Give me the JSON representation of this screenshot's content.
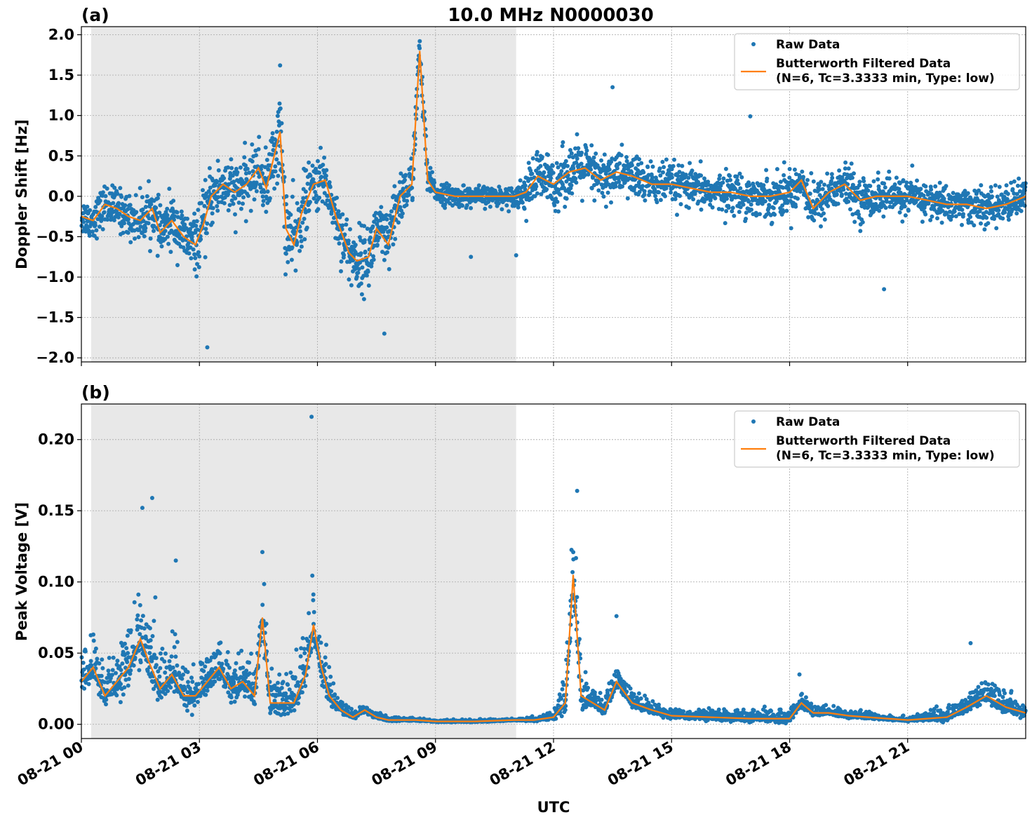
{
  "title": "10.0 MHz N0000030",
  "xlabel": "UTC",
  "x_ticks": [
    "08-21 00",
    "08-21 03",
    "08-21 06",
    "08-21 09",
    "08-21 12",
    "08-21 15",
    "08-21 18",
    "08-21 21"
  ],
  "legend": {
    "raw": "Raw Data",
    "filtered_line1": "Butterworth Filtered Data",
    "filtered_line2": "(N=6, Tc=3.3333 min, Type: low)"
  },
  "colors": {
    "raw": "#1f77b4",
    "filtered": "#ff7f0e",
    "shade": "#e8e8e8",
    "grid": "#b0b0b0"
  },
  "chart_data": [
    {
      "type": "scatter",
      "panel_label": "(a)",
      "ylabel": "Doppler Shift [Hz]",
      "x_unit": "hours since 08-21 00 UTC",
      "xlim": [
        0,
        24
      ],
      "ylim": [
        -2.05,
        2.1
      ],
      "y_ticks": [
        "2.0",
        "1.5",
        "1.0",
        "0.5",
        "0.0",
        "−0.5",
        "−1.0",
        "−1.5",
        "−2.0"
      ],
      "y_tick_values": [
        2.0,
        1.5,
        1.0,
        0.5,
        0.0,
        -0.5,
        -1.0,
        -1.5,
        -2.0
      ],
      "shaded_x": [
        0.25,
        11.05
      ],
      "legend_position": "top-right",
      "grid": true,
      "series": [
        {
          "name": "Butterworth Filtered Data (N=6, Tc=3.3333 min, Type: low)",
          "kind": "line",
          "x": [
            0.0,
            0.3,
            0.6,
            0.9,
            1.2,
            1.5,
            1.8,
            2.0,
            2.3,
            2.6,
            2.9,
            3.1,
            3.3,
            3.6,
            3.9,
            4.2,
            4.5,
            4.7,
            4.9,
            5.05,
            5.2,
            5.4,
            5.6,
            5.9,
            6.2,
            6.5,
            6.8,
            7.0,
            7.3,
            7.5,
            7.8,
            8.1,
            8.4,
            8.6,
            8.8,
            9.0,
            9.5,
            10.0,
            10.5,
            11.0,
            11.3,
            11.6,
            12.0,
            12.4,
            12.8,
            13.2,
            13.6,
            14.0,
            14.5,
            15.0,
            15.5,
            16.0,
            16.5,
            17.0,
            17.5,
            18.0,
            18.3,
            18.6,
            19.0,
            19.4,
            19.8,
            20.2,
            20.6,
            21.0,
            21.5,
            22.0,
            22.5,
            23.0,
            23.5,
            24.0
          ],
          "y": [
            -0.25,
            -0.3,
            -0.1,
            -0.15,
            -0.25,
            -0.3,
            -0.15,
            -0.45,
            -0.3,
            -0.5,
            -0.6,
            -0.35,
            0.0,
            0.15,
            0.05,
            0.15,
            0.35,
            0.1,
            0.5,
            0.8,
            -0.4,
            -0.6,
            -0.2,
            0.15,
            0.2,
            -0.3,
            -0.7,
            -0.8,
            -0.75,
            -0.4,
            -0.6,
            0.0,
            0.15,
            1.8,
            0.2,
            0.05,
            0.0,
            0.0,
            0.0,
            0.0,
            0.05,
            0.25,
            0.15,
            0.3,
            0.35,
            0.2,
            0.3,
            0.25,
            0.15,
            0.15,
            0.1,
            0.05,
            0.05,
            0.0,
            0.0,
            0.05,
            0.2,
            -0.15,
            0.05,
            0.15,
            -0.05,
            0.0,
            0.0,
            0.0,
            -0.05,
            -0.1,
            -0.1,
            -0.15,
            -0.1,
            0.0
          ]
        },
        {
          "name": "Raw Data",
          "kind": "scatter",
          "spread_x": [
            0.0,
            2.8,
            3.1,
            4.5,
            5.2,
            5.9,
            6.4,
            7.0,
            7.8,
            8.6,
            9.0,
            11.0,
            11.5,
            12.5,
            14.0,
            16.0,
            18.0,
            19.0,
            21.0,
            23.0,
            24.0
          ],
          "spread": [
            0.2,
            0.3,
            0.35,
            0.3,
            0.5,
            0.3,
            0.3,
            0.35,
            0.35,
            0.25,
            0.12,
            0.1,
            0.3,
            0.3,
            0.25,
            0.2,
            0.25,
            0.25,
            0.2,
            0.2,
            0.2
          ],
          "outliers": [
            [
              3.2,
              -1.87
            ],
            [
              5.05,
              1.62
            ],
            [
              8.6,
              1.92
            ],
            [
              13.5,
              1.35
            ],
            [
              17.0,
              0.99
            ],
            [
              20.4,
              -1.15
            ],
            [
              7.7,
              -1.7
            ],
            [
              11.05,
              -0.73
            ],
            [
              9.9,
              -0.75
            ]
          ]
        }
      ]
    },
    {
      "type": "scatter",
      "panel_label": "(b)",
      "ylabel": "Peak Voltage [V]",
      "x_unit": "hours since 08-21 00 UTC",
      "xlim": [
        0,
        24
      ],
      "ylim": [
        -0.01,
        0.225
      ],
      "y_ticks": [
        "0.20",
        "0.15",
        "0.10",
        "0.05",
        "0.00"
      ],
      "y_tick_values": [
        0.2,
        0.15,
        0.1,
        0.05,
        0.0
      ],
      "shaded_x": [
        0.25,
        11.05
      ],
      "legend_position": "top-right",
      "grid": true,
      "series": [
        {
          "name": "Butterworth Filtered Data (N=6, Tc=3.3333 min, Type: low)",
          "kind": "line",
          "x": [
            0.0,
            0.3,
            0.6,
            0.9,
            1.2,
            1.5,
            1.7,
            2.0,
            2.3,
            2.6,
            2.9,
            3.2,
            3.5,
            3.8,
            4.1,
            4.4,
            4.6,
            4.8,
            5.1,
            5.4,
            5.7,
            5.9,
            6.1,
            6.3,
            6.6,
            6.9,
            7.2,
            7.5,
            7.8,
            8.5,
            9.0,
            10.0,
            11.0,
            11.5,
            12.0,
            12.3,
            12.5,
            12.7,
            13.0,
            13.3,
            13.6,
            14.0,
            14.5,
            15.0,
            16.0,
            17.0,
            18.0,
            18.3,
            18.6,
            19.0,
            19.5,
            20.0,
            21.0,
            22.0,
            22.5,
            23.0,
            23.5,
            24.0
          ],
          "y": [
            0.03,
            0.04,
            0.02,
            0.03,
            0.04,
            0.06,
            0.045,
            0.025,
            0.035,
            0.02,
            0.02,
            0.03,
            0.04,
            0.025,
            0.03,
            0.02,
            0.075,
            0.015,
            0.015,
            0.015,
            0.035,
            0.07,
            0.04,
            0.02,
            0.01,
            0.005,
            0.01,
            0.005,
            0.003,
            0.003,
            0.002,
            0.002,
            0.003,
            0.003,
            0.005,
            0.015,
            0.105,
            0.02,
            0.015,
            0.01,
            0.03,
            0.015,
            0.01,
            0.006,
            0.005,
            0.004,
            0.004,
            0.015,
            0.008,
            0.008,
            0.006,
            0.005,
            0.003,
            0.005,
            0.012,
            0.02,
            0.012,
            0.008
          ]
        },
        {
          "name": "Raw Data",
          "kind": "scatter",
          "spread_x": [
            0.0,
            1.5,
            3.0,
            4.6,
            5.9,
            6.5,
            7.0,
            7.8,
            8.5,
            11.0,
            12.0,
            12.5,
            13.0,
            14.0,
            15.0,
            18.2,
            19.0,
            21.0,
            22.5,
            23.0,
            24.0
          ],
          "spread": [
            0.018,
            0.03,
            0.018,
            0.02,
            0.03,
            0.006,
            0.004,
            0.002,
            0.001,
            0.001,
            0.003,
            0.03,
            0.01,
            0.008,
            0.004,
            0.006,
            0.004,
            0.002,
            0.008,
            0.01,
            0.007
          ],
          "outliers": [
            [
              5.85,
              0.216
            ],
            [
              1.8,
              0.159
            ],
            [
              1.55,
              0.152
            ],
            [
              12.6,
              0.164
            ],
            [
              2.4,
              0.115
            ],
            [
              4.6,
              0.121
            ],
            [
              13.6,
              0.076
            ],
            [
              18.25,
              0.035
            ],
            [
              22.6,
              0.057
            ]
          ]
        }
      ]
    }
  ]
}
